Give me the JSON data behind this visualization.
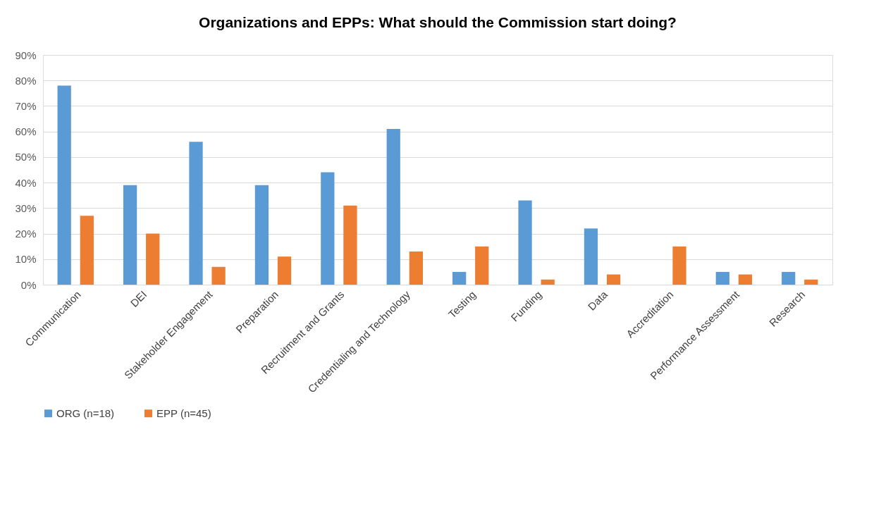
{
  "chart_data": {
    "type": "bar",
    "title": "Organizations and EPPs:  What should the Commission start doing?",
    "categories": [
      "Communication",
      "DEI",
      "Stakeholder Engagement",
      "Preparation",
      "Recruitment and Grants",
      "Credentialing and Technology",
      "Testing",
      "Funding",
      "Data",
      "Accreditation",
      "Performance Assessment",
      "Research"
    ],
    "series": [
      {
        "name": "ORG (n=18)",
        "color": "#5b9bd5",
        "values": [
          78,
          39,
          56,
          39,
          44,
          61,
          5,
          33,
          22,
          0,
          5,
          5
        ]
      },
      {
        "name": "EPP (n=45)",
        "color": "#ed7d31",
        "values": [
          27,
          20,
          7,
          11,
          31,
          13,
          15,
          2,
          4,
          15,
          4,
          2
        ]
      }
    ],
    "ylim": [
      0,
      90
    ],
    "yticks": [
      {
        "value": 0,
        "label": "0%"
      },
      {
        "value": 10,
        "label": "10%"
      },
      {
        "value": 20,
        "label": "20%"
      },
      {
        "value": 30,
        "label": "30%"
      },
      {
        "value": 40,
        "label": "40%"
      },
      {
        "value": 50,
        "label": "50%"
      },
      {
        "value": 60,
        "label": "60%"
      },
      {
        "value": 70,
        "label": "70%"
      },
      {
        "value": 80,
        "label": "80%"
      },
      {
        "value": 90,
        "label": "90%"
      }
    ],
    "grid": "y",
    "legend": "bottom"
  }
}
